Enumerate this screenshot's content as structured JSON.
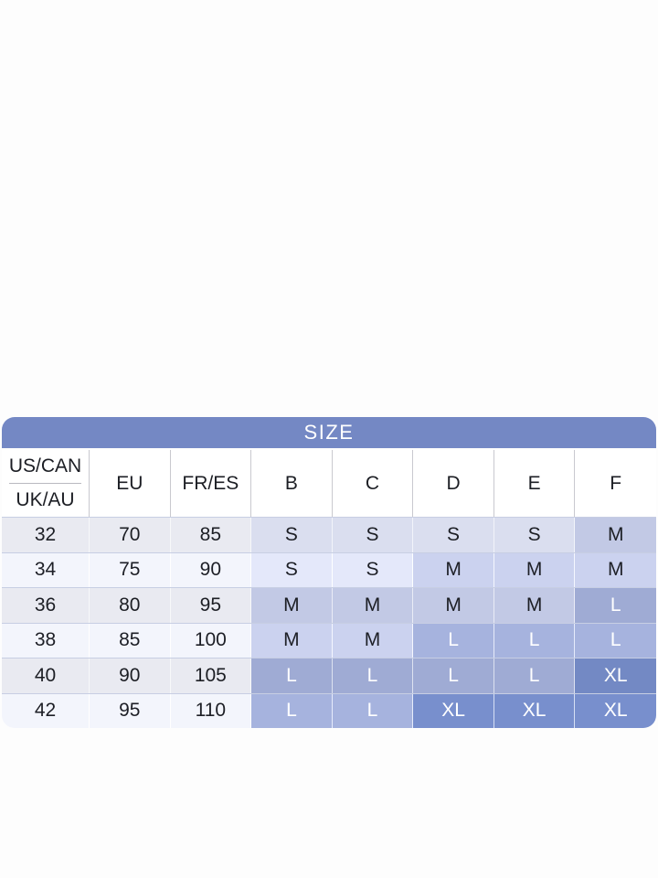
{
  "chart_data": {
    "type": "table",
    "title": "SIZE",
    "first_column_header": {
      "top": "US/CAN",
      "bottom": "UK/AU"
    },
    "column_headers": [
      "EU",
      "FR/ES",
      "B",
      "C",
      "D",
      "E",
      "F"
    ],
    "rows": [
      {
        "band": "32",
        "eu": "70",
        "fr_es": "85",
        "cups": [
          "S",
          "S",
          "S",
          "S",
          "M"
        ]
      },
      {
        "band": "34",
        "eu": "75",
        "fr_es": "90",
        "cups": [
          "S",
          "S",
          "M",
          "M",
          "M"
        ]
      },
      {
        "band": "36",
        "eu": "80",
        "fr_es": "95",
        "cups": [
          "M",
          "M",
          "M",
          "M",
          "L"
        ]
      },
      {
        "band": "38",
        "eu": "85",
        "fr_es": "100",
        "cups": [
          "M",
          "M",
          "L",
          "L",
          "L"
        ]
      },
      {
        "band": "40",
        "eu": "90",
        "fr_es": "105",
        "cups": [
          "L",
          "L",
          "L",
          "L",
          "XL"
        ]
      },
      {
        "band": "42",
        "eu": "95",
        "fr_es": "110",
        "cups": [
          "L",
          "L",
          "XL",
          "XL",
          "XL"
        ]
      }
    ],
    "legend_position": "none",
    "grid": true
  },
  "colors": {
    "header_bg": "#7488c4",
    "header_text": "#ffffff",
    "plain_cell_bg": "#e9eaf1",
    "size_s_bg": "#dadeef",
    "size_m_bg": "#c2c9e5",
    "size_l_bg": "#9fabd4",
    "size_xl_bg": "#7389c4",
    "dark_text": "#1c1e24",
    "light_text": "#ffffff"
  }
}
